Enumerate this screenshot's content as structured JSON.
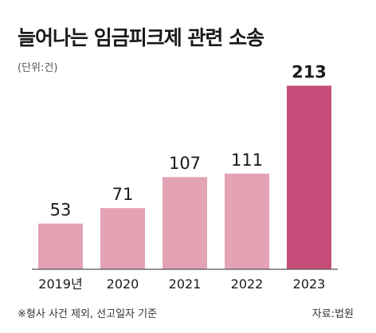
{
  "chart_data": {
    "type": "bar",
    "title": "늘어나는 임금피크제 관련 소송",
    "unit": "(단위:건)",
    "categories": [
      "2019년",
      "2020",
      "2021",
      "2022",
      "2023"
    ],
    "values": [
      53,
      71,
      107,
      111,
      213
    ],
    "ylim": [
      0,
      220
    ],
    "colors": {
      "bar": "#e3a3b5",
      "highlight": "#c64d7a",
      "baseline": "#555555",
      "text": "#1a1a1a"
    },
    "highlight_index": 4,
    "footnote": "※형사 사건 제외, 선고일자 기준",
    "source": "자료:법원"
  }
}
